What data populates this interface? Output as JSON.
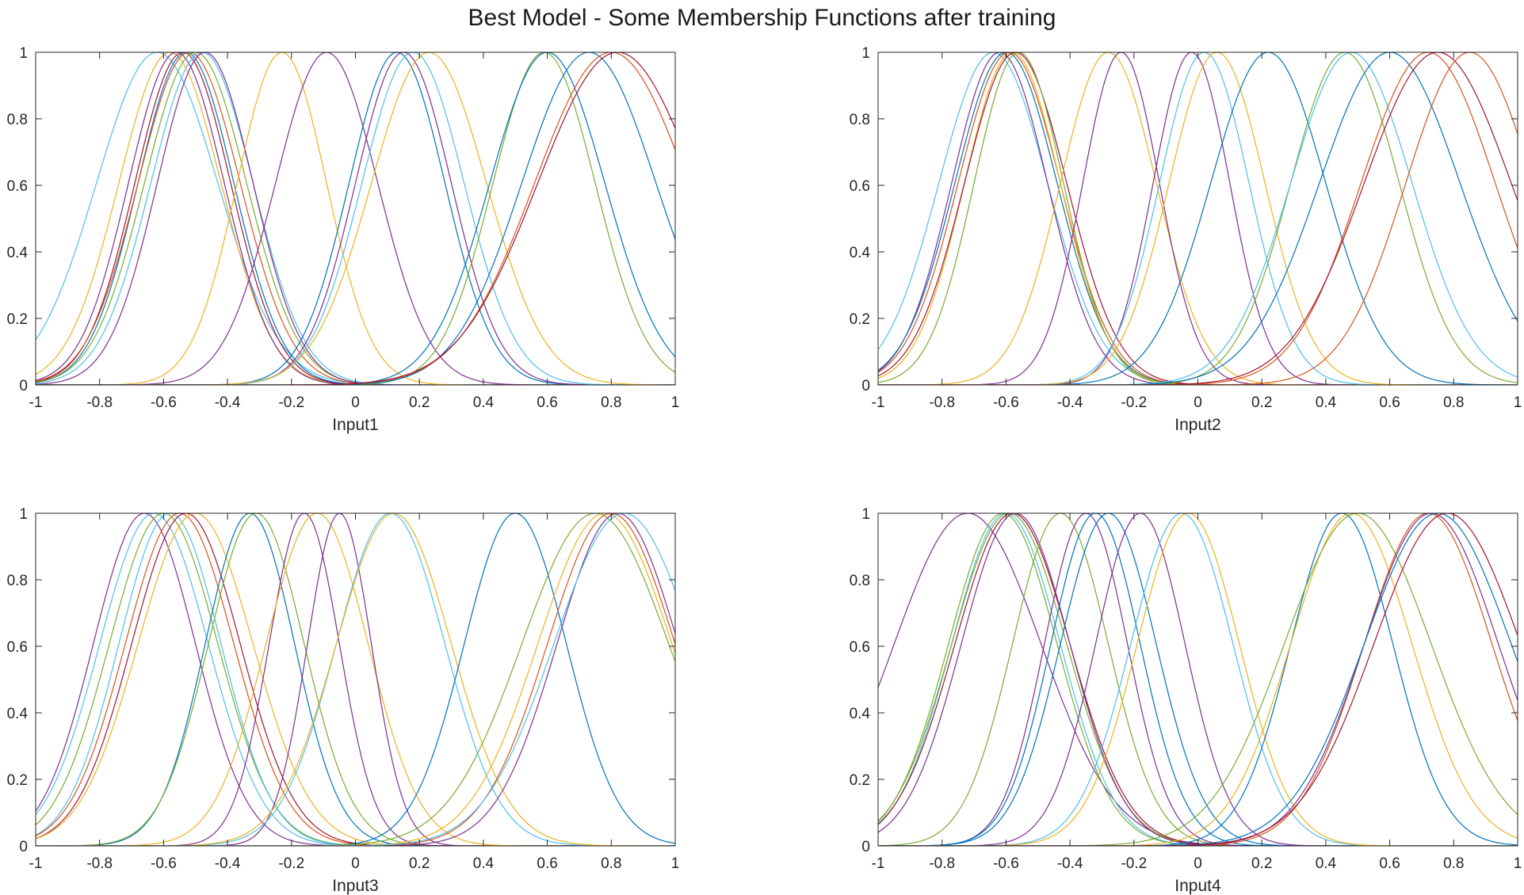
{
  "figure": {
    "title": "Best Model - Some Membership Functions after training"
  },
  "colors": [
    "#0072BD",
    "#D95319",
    "#EDB120",
    "#7E2F8E",
    "#77AC30",
    "#4DBEEE",
    "#A2142F"
  ],
  "chart_data": [
    {
      "type": "line",
      "title": "",
      "xlabel": "Input1",
      "ylabel": "",
      "xlim": [
        -1,
        1
      ],
      "ylim": [
        0,
        1
      ],
      "xticks": [
        "-1",
        "-0.8",
        "-0.6",
        "-0.4",
        "-0.2",
        "0",
        "0.2",
        "0.4",
        "0.6",
        "0.8",
        "1"
      ],
      "yticks": [
        "0",
        "0.2",
        "0.4",
        "0.6",
        "0.8",
        "1"
      ],
      "grid": false,
      "curve": "gaussian",
      "series": [
        {
          "center": -0.62,
          "sigma": 0.19,
          "color": "#4DBEEE"
        },
        {
          "center": -0.58,
          "sigma": 0.16,
          "color": "#EDB120"
        },
        {
          "center": -0.56,
          "sigma": 0.15,
          "color": "#7E2F8E"
        },
        {
          "center": -0.54,
          "sigma": 0.15,
          "color": "#A2142F"
        },
        {
          "center": -0.53,
          "sigma": 0.15,
          "color": "#0072BD"
        },
        {
          "center": -0.52,
          "sigma": 0.16,
          "color": "#D95319"
        },
        {
          "center": -0.5,
          "sigma": 0.16,
          "color": "#77AC30"
        },
        {
          "center": -0.48,
          "sigma": 0.16,
          "color": "#4DBEEE"
        },
        {
          "center": -0.47,
          "sigma": 0.15,
          "color": "#7E2F8E"
        },
        {
          "center": -0.23,
          "sigma": 0.14,
          "color": "#EDB120"
        },
        {
          "center": -0.09,
          "sigma": 0.16,
          "color": "#7E2F8E"
        },
        {
          "center": 0.13,
          "sigma": 0.15,
          "color": "#0072BD"
        },
        {
          "center": 0.15,
          "sigma": 0.15,
          "color": "#7E2F8E"
        },
        {
          "center": 0.18,
          "sigma": 0.16,
          "color": "#4DBEEE"
        },
        {
          "center": 0.23,
          "sigma": 0.18,
          "color": "#EDB120"
        },
        {
          "center": 0.59,
          "sigma": 0.16,
          "color": "#77AC30"
        },
        {
          "center": 0.6,
          "sigma": 0.18,
          "color": "#0072BD"
        },
        {
          "center": 0.73,
          "sigma": 0.21,
          "color": "#0072BD"
        },
        {
          "center": 0.8,
          "sigma": 0.24,
          "color": "#D95319"
        },
        {
          "center": 0.82,
          "sigma": 0.25,
          "color": "#A2142F"
        }
      ]
    },
    {
      "type": "line",
      "title": "",
      "xlabel": "Input2",
      "ylabel": "",
      "xlim": [
        -1,
        1
      ],
      "ylim": [
        0,
        1
      ],
      "xticks": [
        "-1",
        "-0.8",
        "-0.6",
        "-0.4",
        "-0.2",
        "0",
        "0.2",
        "0.4",
        "0.6",
        "0.8",
        "1"
      ],
      "yticks": [
        "0",
        "0.2",
        "0.4",
        "0.6",
        "0.8",
        "1"
      ],
      "grid": false,
      "curve": "gaussian",
      "series": [
        {
          "center": -0.64,
          "sigma": 0.17,
          "color": "#4DBEEE"
        },
        {
          "center": -0.62,
          "sigma": 0.15,
          "color": "#7E2F8E"
        },
        {
          "center": -0.6,
          "sigma": 0.16,
          "color": "#0072BD"
        },
        {
          "center": -0.59,
          "sigma": 0.16,
          "color": "#D95319"
        },
        {
          "center": -0.58,
          "sigma": 0.15,
          "color": "#EDB120"
        },
        {
          "center": -0.57,
          "sigma": 0.16,
          "color": "#A2142F"
        },
        {
          "center": -0.56,
          "sigma": 0.14,
          "color": "#77AC30"
        },
        {
          "center": -0.28,
          "sigma": 0.15,
          "color": "#EDB120"
        },
        {
          "center": -0.24,
          "sigma": 0.12,
          "color": "#7E2F8E"
        },
        {
          "center": -0.02,
          "sigma": 0.12,
          "color": "#7E2F8E"
        },
        {
          "center": 0.02,
          "sigma": 0.14,
          "color": "#4DBEEE"
        },
        {
          "center": 0.06,
          "sigma": 0.15,
          "color": "#EDB120"
        },
        {
          "center": 0.22,
          "sigma": 0.18,
          "color": "#0072BD"
        },
        {
          "center": 0.46,
          "sigma": 0.17,
          "color": "#77AC30"
        },
        {
          "center": 0.48,
          "sigma": 0.19,
          "color": "#4DBEEE"
        },
        {
          "center": 0.6,
          "sigma": 0.22,
          "color": "#0072BD"
        },
        {
          "center": 0.72,
          "sigma": 0.21,
          "color": "#D95319"
        },
        {
          "center": 0.75,
          "sigma": 0.23,
          "color": "#A2142F"
        },
        {
          "center": 0.85,
          "sigma": 0.2,
          "color": "#D95319"
        }
      ]
    },
    {
      "type": "line",
      "title": "",
      "xlabel": "Input3",
      "ylabel": "",
      "xlim": [
        -1,
        1
      ],
      "ylim": [
        0,
        1
      ],
      "xticks": [
        "-1",
        "-0.8",
        "-0.6",
        "-0.4",
        "-0.2",
        "0",
        "0.2",
        "0.4",
        "0.6",
        "0.8",
        "1"
      ],
      "yticks": [
        "0",
        "0.2",
        "0.4",
        "0.6",
        "0.8",
        "1"
      ],
      "grid": false,
      "curve": "gaussian",
      "series": [
        {
          "center": -0.66,
          "sigma": 0.16,
          "color": "#7E2F8E"
        },
        {
          "center": -0.63,
          "sigma": 0.17,
          "color": "#4DBEEE"
        },
        {
          "center": -0.6,
          "sigma": 0.17,
          "color": "#77AC30"
        },
        {
          "center": -0.58,
          "sigma": 0.16,
          "color": "#4DBEEE"
        },
        {
          "center": -0.55,
          "sigma": 0.17,
          "color": "#D95319"
        },
        {
          "center": -0.53,
          "sigma": 0.17,
          "color": "#A2142F"
        },
        {
          "center": -0.5,
          "sigma": 0.18,
          "color": "#EDB120"
        },
        {
          "center": -0.33,
          "sigma": 0.14,
          "color": "#0072BD"
        },
        {
          "center": -0.31,
          "sigma": 0.15,
          "color": "#77AC30"
        },
        {
          "center": -0.16,
          "sigma": 0.11,
          "color": "#7E2F8E"
        },
        {
          "center": -0.12,
          "sigma": 0.16,
          "color": "#EDB120"
        },
        {
          "center": -0.05,
          "sigma": 0.1,
          "color": "#7E2F8E"
        },
        {
          "center": 0.11,
          "sigma": 0.17,
          "color": "#4DBEEE"
        },
        {
          "center": 0.12,
          "sigma": 0.18,
          "color": "#EDB120"
        },
        {
          "center": 0.5,
          "sigma": 0.16,
          "color": "#0072BD"
        },
        {
          "center": 0.75,
          "sigma": 0.23,
          "color": "#77AC30"
        },
        {
          "center": 0.78,
          "sigma": 0.21,
          "color": "#EDB120"
        },
        {
          "center": 0.8,
          "sigma": 0.2,
          "color": "#D95319"
        },
        {
          "center": 0.82,
          "sigma": 0.19,
          "color": "#7E2F8E"
        },
        {
          "center": 0.84,
          "sigma": 0.22,
          "color": "#4DBEEE"
        }
      ]
    },
    {
      "type": "line",
      "title": "",
      "xlabel": "Input4",
      "ylabel": "",
      "xlim": [
        -1,
        1
      ],
      "ylim": [
        0,
        1
      ],
      "xticks": [
        "-1",
        "-0.8",
        "-0.6",
        "-0.4",
        "-0.2",
        "0",
        "0.2",
        "0.4",
        "0.6",
        "0.8",
        "1"
      ],
      "yticks": [
        "0",
        "0.2",
        "0.4",
        "0.6",
        "0.8",
        "1"
      ],
      "grid": false,
      "curve": "gaussian",
      "series": [
        {
          "center": -0.72,
          "sigma": 0.23,
          "color": "#7E2F8E"
        },
        {
          "center": -0.61,
          "sigma": 0.17,
          "color": "#77AC30"
        },
        {
          "center": -0.6,
          "sigma": 0.17,
          "color": "#4DBEEE"
        },
        {
          "center": -0.59,
          "sigma": 0.18,
          "color": "#77AC30"
        },
        {
          "center": -0.58,
          "sigma": 0.18,
          "color": "#A2142F"
        },
        {
          "center": -0.57,
          "sigma": 0.17,
          "color": "#7E2F8E"
        },
        {
          "center": -0.43,
          "sigma": 0.15,
          "color": "#77AC30"
        },
        {
          "center": -0.35,
          "sigma": 0.13,
          "color": "#7E2F8E"
        },
        {
          "center": -0.32,
          "sigma": 0.14,
          "color": "#0072BD"
        },
        {
          "center": -0.28,
          "sigma": 0.15,
          "color": "#0072BD"
        },
        {
          "center": -0.18,
          "sigma": 0.14,
          "color": "#7E2F8E"
        },
        {
          "center": -0.05,
          "sigma": 0.16,
          "color": "#4DBEEE"
        },
        {
          "center": -0.03,
          "sigma": 0.16,
          "color": "#EDB120"
        },
        {
          "center": 0.45,
          "sigma": 0.16,
          "color": "#0072BD"
        },
        {
          "center": 0.48,
          "sigma": 0.19,
          "color": "#EDB120"
        },
        {
          "center": 0.5,
          "sigma": 0.23,
          "color": "#77AC30"
        },
        {
          "center": 0.72,
          "sigma": 0.2,
          "color": "#D95319"
        },
        {
          "center": 0.73,
          "sigma": 0.21,
          "color": "#7E2F8E"
        },
        {
          "center": 0.75,
          "sigma": 0.23,
          "color": "#0072BD"
        },
        {
          "center": 0.78,
          "sigma": 0.23,
          "color": "#A2142F"
        }
      ]
    }
  ]
}
